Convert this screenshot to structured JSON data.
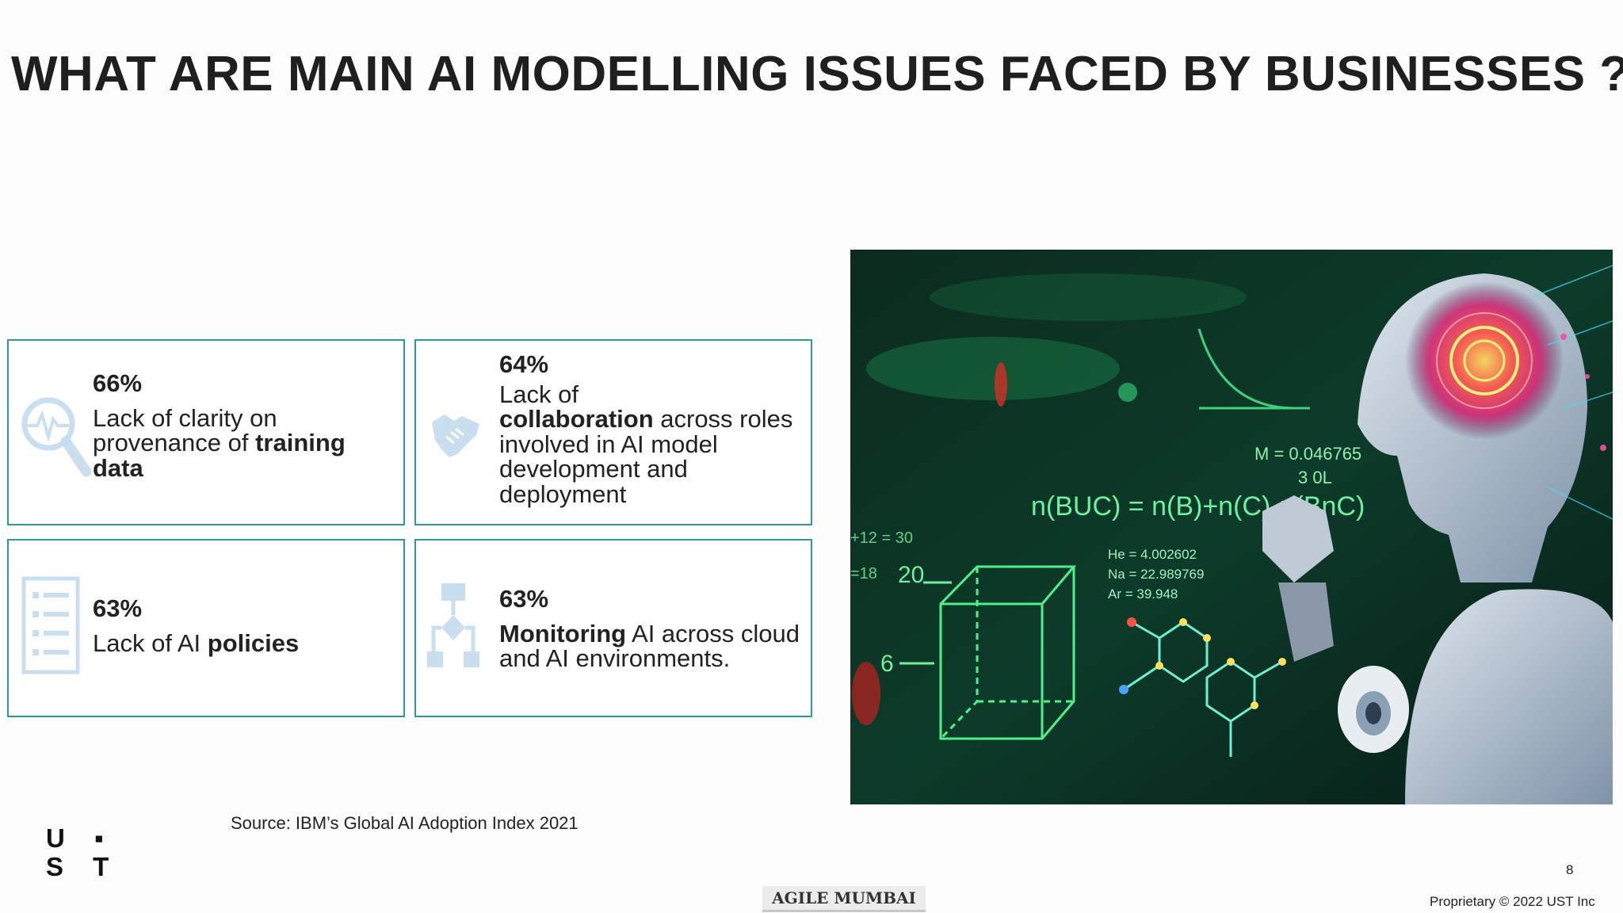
{
  "slide": {
    "title": "WHAT ARE MAIN AI MODELLING ISSUES FACED BY BUSINESSES ?",
    "source": "Source: IBM’s Global AI Adoption Index 2021",
    "page_number": "8",
    "proprietary": "Proprietary © 2022 UST Inc",
    "logo": {
      "line1": "U ▪",
      "line2": "S T"
    },
    "watermark": "AGILE MUMBAI"
  },
  "cards": [
    {
      "percent": "66%",
      "text_1": "Lack of clarity on provenance of ",
      "bold_1": "training data",
      "icon": "magnifier-pulse-icon"
    },
    {
      "percent": "64%",
      "text_1": "Lack of ",
      "bold_1": "collaboration",
      "text_2": " across roles involved in AI model development and deployment",
      "icon": "handshake-icon"
    },
    {
      "percent": "63%",
      "text_1": "Lack of AI ",
      "bold_1": "policies",
      "icon": "checklist-icon"
    },
    {
      "percent": "63%",
      "bold_1": "Monitoring",
      "text_1": " AI across cloud and AI environments.",
      "icon": "flowchart-icon"
    }
  ],
  "image": {
    "formula": "n(BUC) = n(B)+n(C)-n(BnC)",
    "m_value": "M = 0.046765",
    "vol": "3 0L",
    "he": "He = 4.002602",
    "na": "Na = 22.989769",
    "ar": "Ar = 39.948",
    "eq": "+12 = 30",
    "n20": "20",
    "n6": "6",
    "n18": "=18"
  },
  "colors": {
    "card_border": "#2a9aa0",
    "icon_tint": "#c9dff0",
    "title": "#1f1f1f"
  }
}
